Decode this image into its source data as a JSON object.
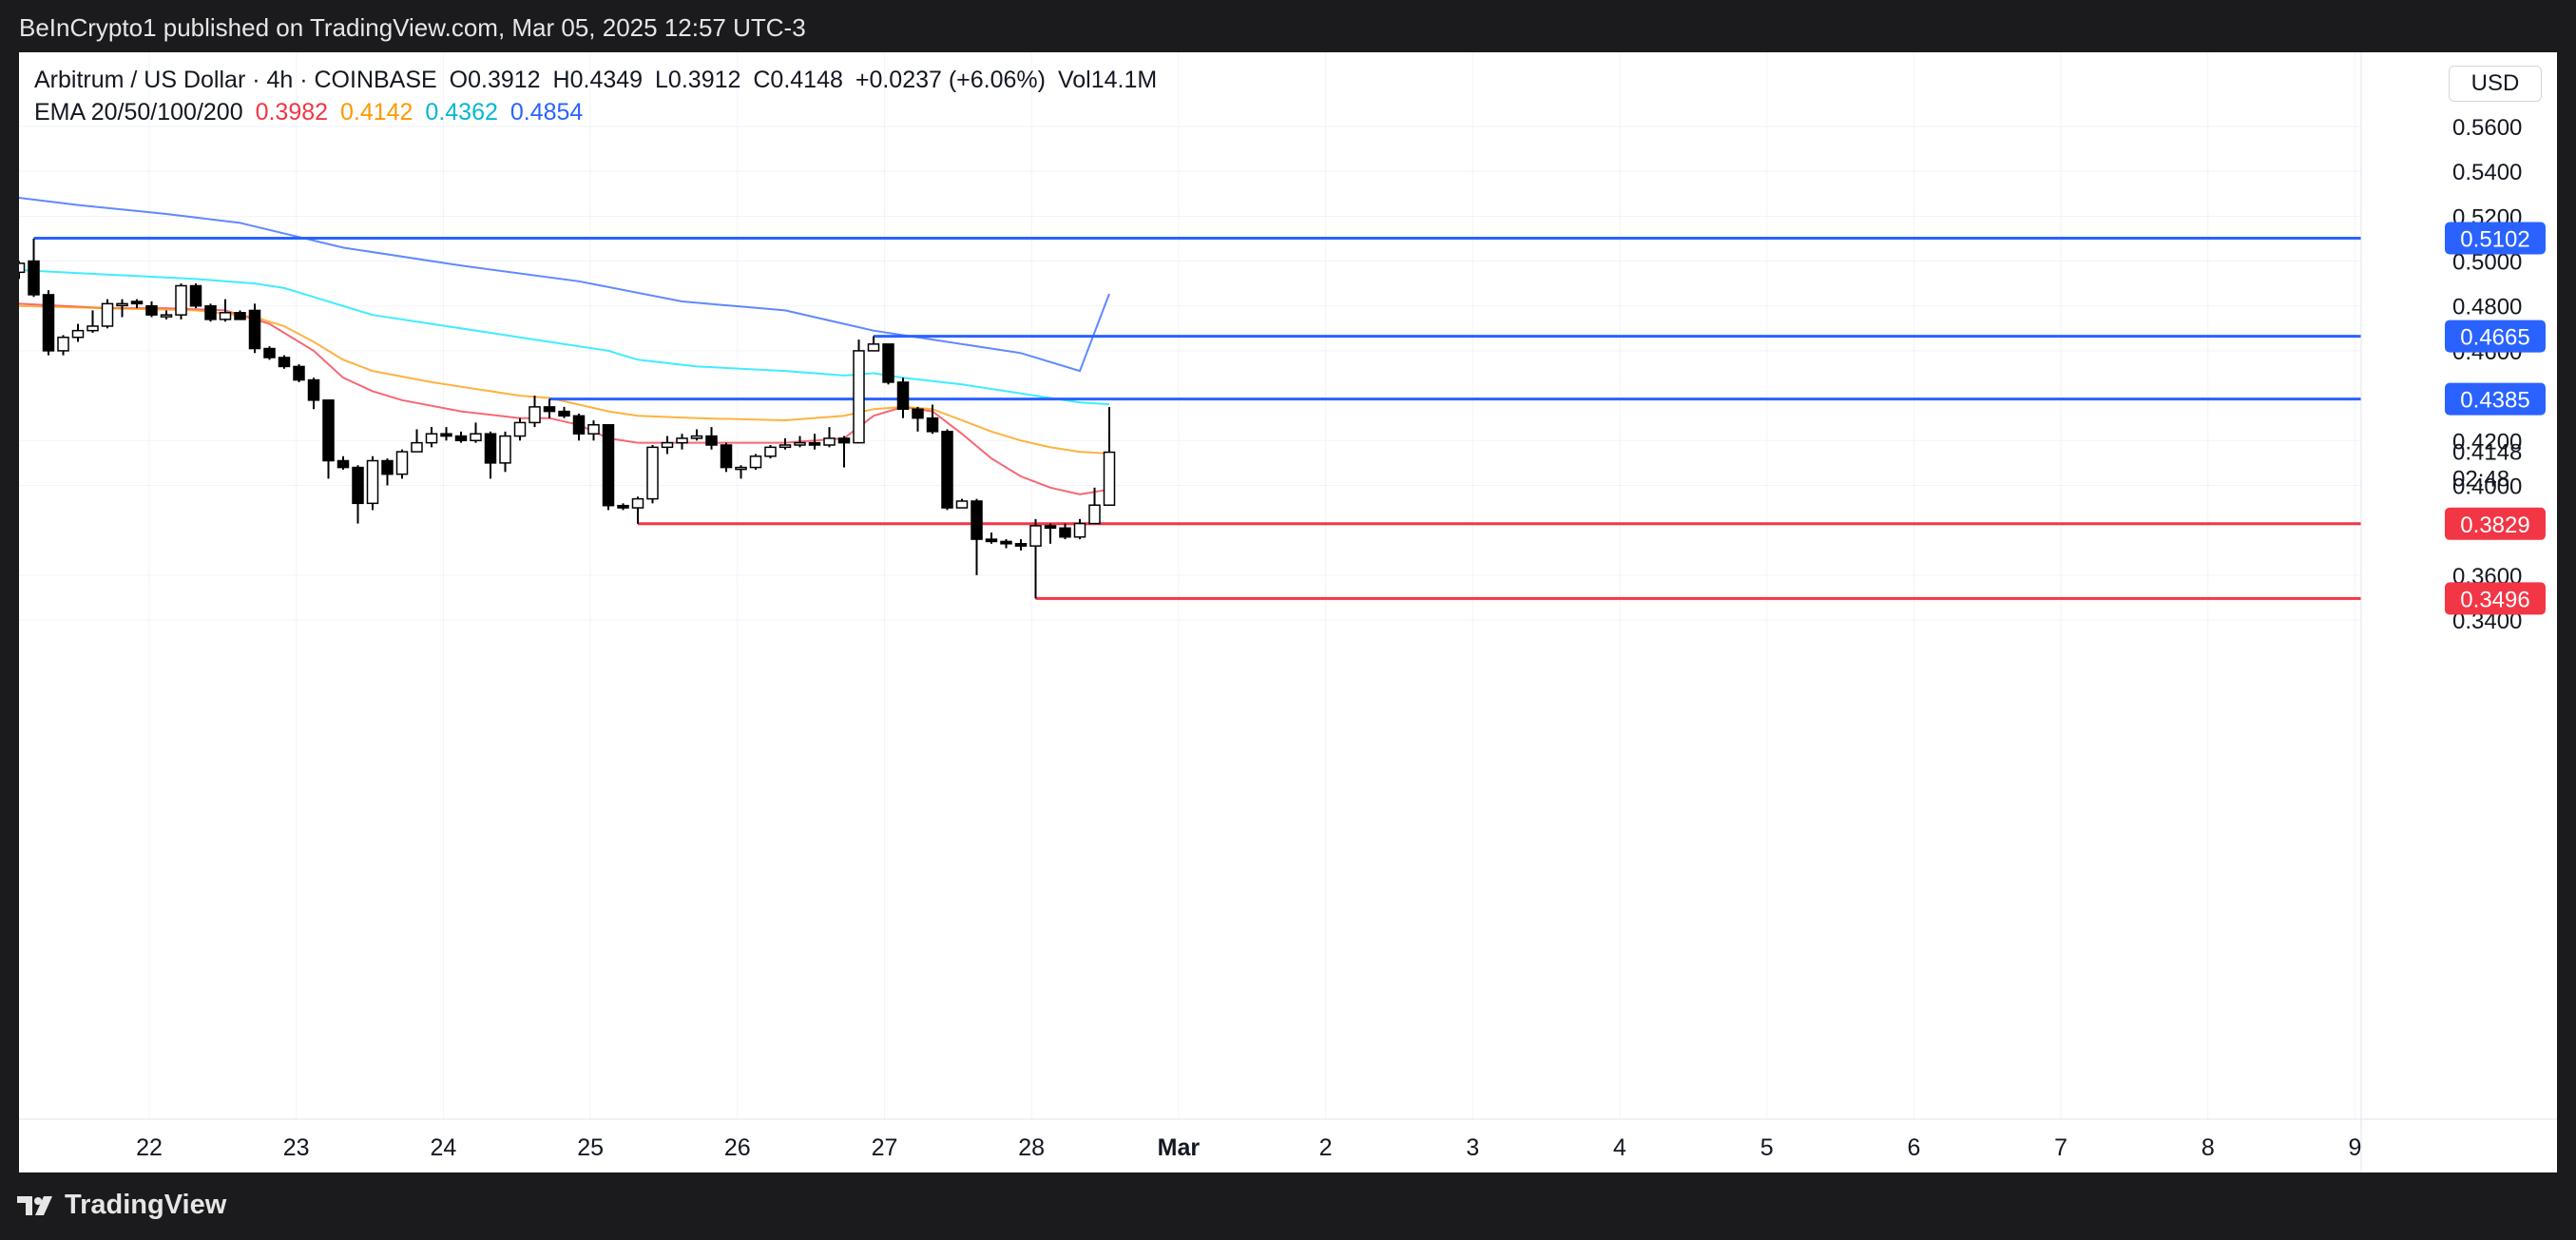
{
  "header": {
    "published": "BeInCrypto1 published on TradingView.com, Mar 05, 2025 12:57 UTC-3"
  },
  "legend": {
    "symbol": "Arbitrum / US Dollar · 4h · COINBASE",
    "open": "O0.3912",
    "high": "H0.4349",
    "low": "L0.3912",
    "close": "C0.4148",
    "change": "+0.0237 (+6.06%)",
    "volume": "Vol14.1M",
    "ema_label": "EMA 20/50/100/200",
    "ema20": "0.3982",
    "ema50": "0.4142",
    "ema100": "0.4362",
    "ema200": "0.4854"
  },
  "currency": "USD",
  "footer": {
    "brand": "TradingView"
  },
  "colors": {
    "ema20": "#f23645",
    "ema50": "#ff9800",
    "ema100": "#00e5ff",
    "ema200": "#2962ff",
    "resistance": "#2962ff",
    "support": "#f23645",
    "up_body": "#ffffff",
    "down_body": "#000000"
  },
  "chart_data": {
    "type": "candlestick",
    "title": "Arbitrum / US Dollar · 4h · COINBASE",
    "ylim": [
      0.33,
      0.57
    ],
    "y_ticks": [
      "0.5600",
      "0.5400",
      "0.5200",
      "0.5000",
      "0.4800",
      "0.4600",
      "0.4200",
      "0.4000",
      "0.3600",
      "0.3400"
    ],
    "x_ticks": [
      {
        "label": "22",
        "day": 22
      },
      {
        "label": "23",
        "day": 23
      },
      {
        "label": "24",
        "day": 24
      },
      {
        "label": "25",
        "day": 25
      },
      {
        "label": "26",
        "day": 26
      },
      {
        "label": "27",
        "day": 27
      },
      {
        "label": "28",
        "day": 28
      },
      {
        "label": "Mar",
        "day": 29
      },
      {
        "label": "2",
        "day": 30
      },
      {
        "label": "3",
        "day": 31
      },
      {
        "label": "4",
        "day": 32
      },
      {
        "label": "5",
        "day": 33
      },
      {
        "label": "6",
        "day": 34
      },
      {
        "label": "7",
        "day": 35
      },
      {
        "label": "8",
        "day": 36
      },
      {
        "label": "9",
        "day": 37
      }
    ],
    "candles": [
      [
        0.495,
        0.499,
        0.492,
        0.5
      ],
      [
        0.5,
        0.485,
        0.484,
        0.51
      ],
      [
        0.485,
        0.46,
        0.458,
        0.487
      ],
      [
        0.46,
        0.466,
        0.458,
        0.467
      ],
      [
        0.466,
        0.469,
        0.464,
        0.472
      ],
      [
        0.469,
        0.471,
        0.468,
        0.478
      ],
      [
        0.471,
        0.481,
        0.47,
        0.483
      ],
      [
        0.481,
        0.481,
        0.475,
        0.483
      ],
      [
        0.482,
        0.481,
        0.479,
        0.483
      ],
      [
        0.48,
        0.476,
        0.475,
        0.482
      ],
      [
        0.476,
        0.476,
        0.474,
        0.478
      ],
      [
        0.476,
        0.489,
        0.474,
        0.49
      ],
      [
        0.489,
        0.48,
        0.479,
        0.49
      ],
      [
        0.48,
        0.474,
        0.473,
        0.481
      ],
      [
        0.474,
        0.477,
        0.473,
        0.483
      ],
      [
        0.477,
        0.474,
        0.474,
        0.478
      ],
      [
        0.478,
        0.461,
        0.459,
        0.481
      ],
      [
        0.461,
        0.457,
        0.456,
        0.462
      ],
      [
        0.457,
        0.453,
        0.452,
        0.458
      ],
      [
        0.453,
        0.447,
        0.446,
        0.454
      ],
      [
        0.447,
        0.438,
        0.434,
        0.448
      ],
      [
        0.438,
        0.411,
        0.403,
        0.438
      ],
      [
        0.411,
        0.408,
        0.407,
        0.413
      ],
      [
        0.408,
        0.392,
        0.383,
        0.409
      ],
      [
        0.392,
        0.411,
        0.389,
        0.413
      ],
      [
        0.411,
        0.405,
        0.4,
        0.412
      ],
      [
        0.405,
        0.415,
        0.403,
        0.416
      ],
      [
        0.415,
        0.419,
        0.416,
        0.425
      ],
      [
        0.419,
        0.423,
        0.417,
        0.426
      ],
      [
        0.423,
        0.422,
        0.42,
        0.426
      ],
      [
        0.422,
        0.42,
        0.419,
        0.424
      ],
      [
        0.42,
        0.423,
        0.419,
        0.428
      ],
      [
        0.423,
        0.41,
        0.403,
        0.424
      ],
      [
        0.41,
        0.422,
        0.406,
        0.424
      ],
      [
        0.422,
        0.428,
        0.42,
        0.43
      ],
      [
        0.428,
        0.435,
        0.426,
        0.44
      ],
      [
        0.435,
        0.433,
        0.43,
        0.4385
      ],
      [
        0.433,
        0.431,
        0.43,
        0.435
      ],
      [
        0.431,
        0.423,
        0.42,
        0.432
      ],
      [
        0.423,
        0.427,
        0.42,
        0.429
      ],
      [
        0.427,
        0.391,
        0.389,
        0.427
      ],
      [
        0.391,
        0.39,
        0.389,
        0.392
      ],
      [
        0.39,
        0.394,
        0.3829,
        0.395
      ],
      [
        0.394,
        0.417,
        0.392,
        0.418
      ],
      [
        0.417,
        0.419,
        0.414,
        0.422
      ],
      [
        0.419,
        0.421,
        0.416,
        0.423
      ],
      [
        0.421,
        0.422,
        0.42,
        0.425
      ],
      [
        0.422,
        0.418,
        0.416,
        0.426
      ],
      [
        0.418,
        0.408,
        0.406,
        0.419
      ],
      [
        0.408,
        0.408,
        0.403,
        0.409
      ],
      [
        0.408,
        0.413,
        0.407,
        0.414
      ],
      [
        0.413,
        0.417,
        0.412,
        0.418
      ],
      [
        0.417,
        0.418,
        0.416,
        0.421
      ],
      [
        0.418,
        0.419,
        0.417,
        0.422
      ],
      [
        0.419,
        0.418,
        0.416,
        0.423
      ],
      [
        0.418,
        0.421,
        0.417,
        0.426
      ],
      [
        0.421,
        0.419,
        0.408,
        0.422
      ],
      [
        0.419,
        0.46,
        0.419,
        0.465
      ],
      [
        0.46,
        0.463,
        0.46,
        0.4665
      ],
      [
        0.463,
        0.446,
        0.445,
        0.463
      ],
      [
        0.446,
        0.434,
        0.43,
        0.448
      ],
      [
        0.434,
        0.43,
        0.424,
        0.435
      ],
      [
        0.43,
        0.424,
        0.423,
        0.436
      ],
      [
        0.424,
        0.39,
        0.389,
        0.425
      ],
      [
        0.39,
        0.393,
        0.39,
        0.394
      ],
      [
        0.393,
        0.376,
        0.36,
        0.394
      ],
      [
        0.376,
        0.375,
        0.374,
        0.379
      ],
      [
        0.375,
        0.374,
        0.372,
        0.376
      ],
      [
        0.374,
        0.373,
        0.371,
        0.376
      ],
      [
        0.373,
        0.382,
        0.3496,
        0.385
      ],
      [
        0.382,
        0.381,
        0.374,
        0.383
      ],
      [
        0.381,
        0.377,
        0.376,
        0.383
      ],
      [
        0.377,
        0.383,
        0.376,
        0.385
      ],
      [
        0.383,
        0.3912,
        0.383,
        0.399
      ],
      [
        0.3912,
        0.4148,
        0.3912,
        0.4349
      ]
    ],
    "ema": [
      {
        "name": "EMA 20",
        "color": "#f23645",
        "values": [
          [
            0,
            0.481
          ],
          [
            3,
            0.48
          ],
          [
            6,
            0.479
          ],
          [
            10,
            0.479
          ],
          [
            14,
            0.478
          ],
          [
            17,
            0.472
          ],
          [
            20,
            0.46
          ],
          [
            22,
            0.448
          ],
          [
            24,
            0.442
          ],
          [
            26,
            0.438
          ],
          [
            30,
            0.433
          ],
          [
            34,
            0.43
          ],
          [
            36,
            0.43
          ],
          [
            38,
            0.427
          ],
          [
            40,
            0.421
          ],
          [
            42,
            0.419
          ],
          [
            44,
            0.419
          ],
          [
            48,
            0.419
          ],
          [
            52,
            0.419
          ],
          [
            56,
            0.421
          ],
          [
            58,
            0.431
          ],
          [
            60,
            0.435
          ],
          [
            62,
            0.433
          ],
          [
            64,
            0.423
          ],
          [
            66,
            0.412
          ],
          [
            68,
            0.404
          ],
          [
            70,
            0.399
          ],
          [
            72,
            0.396
          ],
          [
            74,
            0.3982
          ]
        ]
      },
      {
        "name": "EMA 50",
        "color": "#ff9800",
        "values": [
          [
            0,
            0.48
          ],
          [
            6,
            0.479
          ],
          [
            12,
            0.478
          ],
          [
            16,
            0.475
          ],
          [
            18,
            0.471
          ],
          [
            20,
            0.464
          ],
          [
            22,
            0.456
          ],
          [
            24,
            0.451
          ],
          [
            28,
            0.446
          ],
          [
            32,
            0.442
          ],
          [
            34,
            0.44
          ],
          [
            36,
            0.439
          ],
          [
            38,
            0.436
          ],
          [
            40,
            0.433
          ],
          [
            42,
            0.431
          ],
          [
            46,
            0.43
          ],
          [
            52,
            0.429
          ],
          [
            56,
            0.431
          ],
          [
            58,
            0.434
          ],
          [
            60,
            0.435
          ],
          [
            62,
            0.434
          ],
          [
            64,
            0.429
          ],
          [
            66,
            0.424
          ],
          [
            68,
            0.42
          ],
          [
            70,
            0.417
          ],
          [
            72,
            0.415
          ],
          [
            74,
            0.4142
          ]
        ]
      },
      {
        "name": "EMA 100",
        "color": "#00e5ff",
        "values": [
          [
            0,
            0.496
          ],
          [
            6,
            0.494
          ],
          [
            12,
            0.492
          ],
          [
            16,
            0.49
          ],
          [
            18,
            0.488
          ],
          [
            20,
            0.484
          ],
          [
            24,
            0.476
          ],
          [
            28,
            0.472
          ],
          [
            32,
            0.468
          ],
          [
            36,
            0.464
          ],
          [
            40,
            0.46
          ],
          [
            42,
            0.456
          ],
          [
            46,
            0.453
          ],
          [
            52,
            0.451
          ],
          [
            56,
            0.449
          ],
          [
            58,
            0.45
          ],
          [
            60,
            0.448
          ],
          [
            64,
            0.445
          ],
          [
            68,
            0.441
          ],
          [
            72,
            0.437
          ],
          [
            74,
            0.4362
          ]
        ]
      },
      {
        "name": "EMA 200",
        "color": "#2962ff",
        "values": [
          [
            -1,
            0.529
          ],
          [
            4,
            0.525
          ],
          [
            10,
            0.521
          ],
          [
            15,
            0.517
          ],
          [
            22,
            0.506
          ],
          [
            30,
            0.498
          ],
          [
            38,
            0.491
          ],
          [
            45,
            0.482
          ],
          [
            52,
            0.478
          ],
          [
            58,
            0.469
          ],
          [
            62,
            0.465
          ],
          [
            68,
            0.459
          ],
          [
            72,
            0.451
          ],
          [
            74,
            0.4854
          ]
        ]
      }
    ],
    "levels": [
      {
        "label": "0.5102",
        "value": 0.5102,
        "type": "resistance",
        "start_candle": 1
      },
      {
        "label": "0.4665",
        "value": 0.4665,
        "type": "resistance",
        "start_candle": 58
      },
      {
        "label": "0.4385",
        "value": 0.4385,
        "type": "resistance",
        "start_candle": 36
      },
      {
        "label": "0.3829",
        "value": 0.3829,
        "type": "support",
        "start_candle": 42
      },
      {
        "label": "0.3496",
        "value": 0.3496,
        "type": "support",
        "start_candle": 69
      }
    ],
    "price_tag": {
      "value": "0.4148",
      "countdown": "02:48"
    }
  }
}
